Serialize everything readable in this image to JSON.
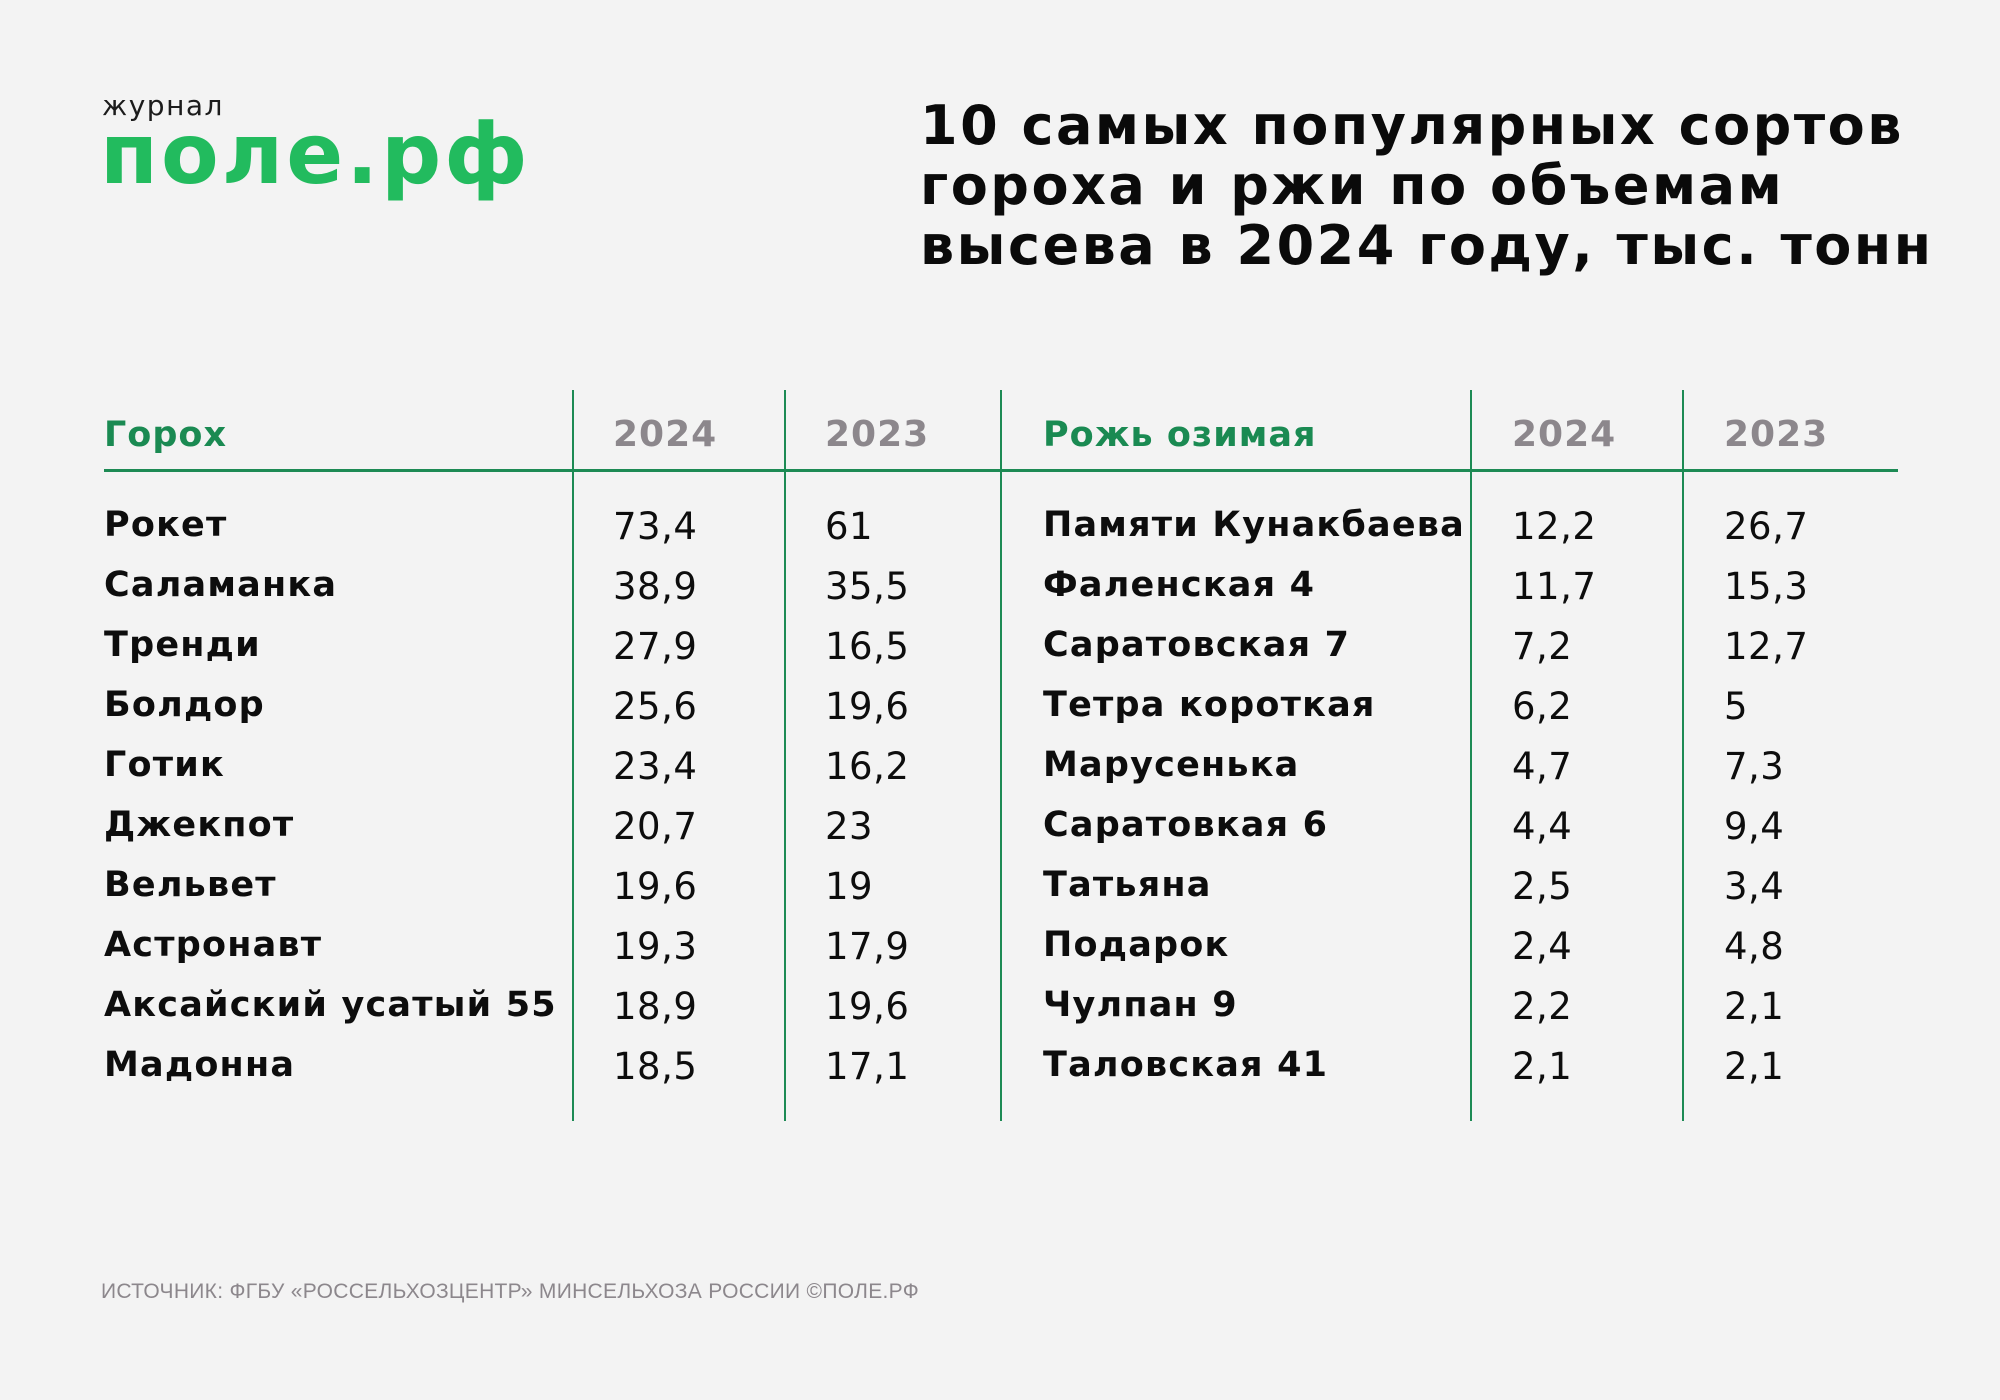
{
  "logo": {
    "small": "журнал",
    "big": "поле.рф",
    "color": "#22bb5e"
  },
  "title": {
    "lines": [
      "10 самых популярных сортов",
      "гороха и ржи по объемам",
      "высева в 2024 году, тыс. тонн"
    ]
  },
  "table": {
    "accent_color": "#1d8a54",
    "peas": {
      "header": "Горох",
      "year_a": "2024",
      "year_b": "2023",
      "rows": [
        {
          "name": "Рокет",
          "y2024": "73,4",
          "y2023": "61"
        },
        {
          "name": "Саламанка",
          "y2024": "38,9",
          "y2023": "35,5"
        },
        {
          "name": "Тренди",
          "y2024": "27,9",
          "y2023": "16,5"
        },
        {
          "name": "Болдор",
          "y2024": "25,6",
          "y2023": "19,6"
        },
        {
          "name": "Готик",
          "y2024": "23,4",
          "y2023": "16,2"
        },
        {
          "name": "Джекпот",
          "y2024": "20,7",
          "y2023": "23"
        },
        {
          "name": "Вельвет",
          "y2024": "19,6",
          "y2023": "19"
        },
        {
          "name": "Астронавт",
          "y2024": "19,3",
          "y2023": "17,9"
        },
        {
          "name": "Аксайский усатый 55",
          "y2024": "18,9",
          "y2023": "19,6"
        },
        {
          "name": "Мадонна",
          "y2024": "18,5",
          "y2023": "17,1"
        }
      ]
    },
    "rye": {
      "header": "Рожь озимая",
      "year_a": "2024",
      "year_b": "2023",
      "rows": [
        {
          "name": "Памяти Кунакбаева",
          "y2024": "12,2",
          "y2023": "26,7"
        },
        {
          "name": "Фаленская 4",
          "y2024": "11,7",
          "y2023": "15,3"
        },
        {
          "name": "Саратовская 7",
          "y2024": "7,2",
          "y2023": "12,7"
        },
        {
          "name": "Тетра короткая",
          "y2024": "6,2",
          "y2023": "5"
        },
        {
          "name": "Марусенька",
          "y2024": "4,7",
          "y2023": "7,3"
        },
        {
          "name": "Саратовкая 6",
          "y2024": "4,4",
          "y2023": "9,4"
        },
        {
          "name": "Татьяна",
          "y2024": "2,5",
          "y2023": "3,4"
        },
        {
          "name": "Подарок",
          "y2024": "2,4",
          "y2023": "4,8"
        },
        {
          "name": "Чулпан 9",
          "y2024": "2,2",
          "y2023": "2,1"
        },
        {
          "name": "Таловская 41",
          "y2024": "2,1",
          "y2023": "2,1"
        }
      ]
    }
  },
  "footer": {
    "source": "ИСТОЧНИК: ФГБУ «РОССЕЛЬХОЗЦЕНТР» МИНСЕЛЬХОЗА РОССИИ ©ПОЛЕ.РФ"
  }
}
